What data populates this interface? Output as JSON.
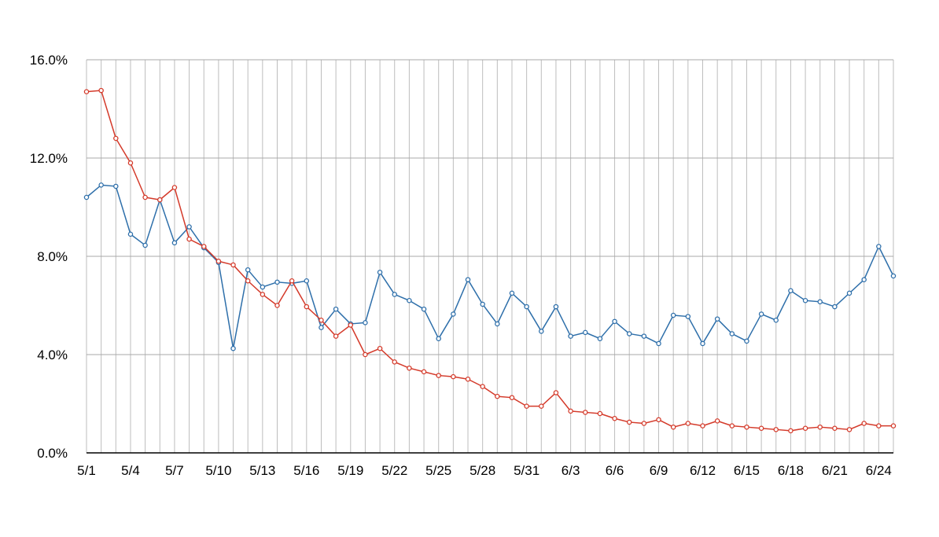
{
  "chart_data": {
    "type": "line",
    "title": "",
    "xlabel": "",
    "ylabel": "",
    "x": [
      "5/1",
      "5/2",
      "5/3",
      "5/4",
      "5/5",
      "5/6",
      "5/7",
      "5/8",
      "5/9",
      "5/10",
      "5/11",
      "5/12",
      "5/13",
      "5/14",
      "5/15",
      "5/16",
      "5/17",
      "5/18",
      "5/19",
      "5/20",
      "5/21",
      "5/22",
      "5/23",
      "5/24",
      "5/25",
      "5/26",
      "5/27",
      "5/28",
      "5/29",
      "5/30",
      "5/31",
      "6/1",
      "6/2",
      "6/3",
      "6/4",
      "6/5",
      "6/6",
      "6/7",
      "6/8",
      "6/9",
      "6/10",
      "6/11",
      "6/12",
      "6/13",
      "6/14",
      "6/15",
      "6/16",
      "6/17",
      "6/18",
      "6/19",
      "6/20",
      "6/21",
      "6/22",
      "6/23",
      "6/24",
      "6/25"
    ],
    "x_tick_labels": [
      "5/1",
      "5/4",
      "5/7",
      "5/10",
      "5/13",
      "5/16",
      "5/19",
      "5/22",
      "5/25",
      "5/28",
      "5/31",
      "6/3",
      "6/6",
      "6/9",
      "6/12",
      "6/15",
      "6/18",
      "6/21",
      "6/24"
    ],
    "y_tick_labels": [
      "0.0%",
      "4.0%",
      "8.0%",
      "12.0%",
      "16.0%"
    ],
    "ylim": [
      0,
      16
    ],
    "y_unit": "%",
    "grid": true,
    "series": [
      {
        "color": "#2e6faa",
        "values": [
          10.4,
          10.9,
          10.85,
          8.9,
          8.45,
          10.3,
          8.55,
          9.2,
          8.35,
          7.75,
          4.25,
          7.45,
          6.75,
          6.95,
          6.9,
          7.0,
          5.1,
          5.85,
          5.25,
          5.3,
          7.35,
          6.45,
          6.2,
          5.85,
          4.65,
          5.65,
          7.05,
          6.05,
          5.25,
          6.5,
          5.95,
          4.95,
          5.95,
          4.75,
          4.9,
          4.65,
          5.35,
          4.85,
          4.75,
          4.45,
          5.6,
          5.55,
          4.45,
          5.45,
          4.85,
          4.55,
          5.65,
          5.4,
          6.6,
          6.2,
          6.15,
          5.95,
          6.5,
          7.05,
          8.4,
          7.2
        ]
      },
      {
        "color": "#d43a2a",
        "values": [
          14.7,
          14.75,
          12.8,
          11.8,
          10.4,
          10.3,
          10.8,
          8.7,
          8.4,
          7.8,
          7.65,
          7.0,
          6.45,
          6.0,
          7.0,
          5.95,
          5.4,
          4.75,
          5.2,
          4.0,
          4.25,
          3.7,
          3.45,
          3.3,
          3.15,
          3.1,
          3.0,
          2.7,
          2.3,
          2.25,
          1.9,
          1.9,
          2.45,
          1.7,
          1.65,
          1.6,
          1.4,
          1.25,
          1.2,
          1.35,
          1.05,
          1.2,
          1.1,
          1.3,
          1.1,
          1.05,
          1.0,
          0.95,
          0.9,
          1.0,
          1.05,
          1.0,
          0.95,
          1.2,
          1.1,
          1.1
        ]
      }
    ]
  }
}
